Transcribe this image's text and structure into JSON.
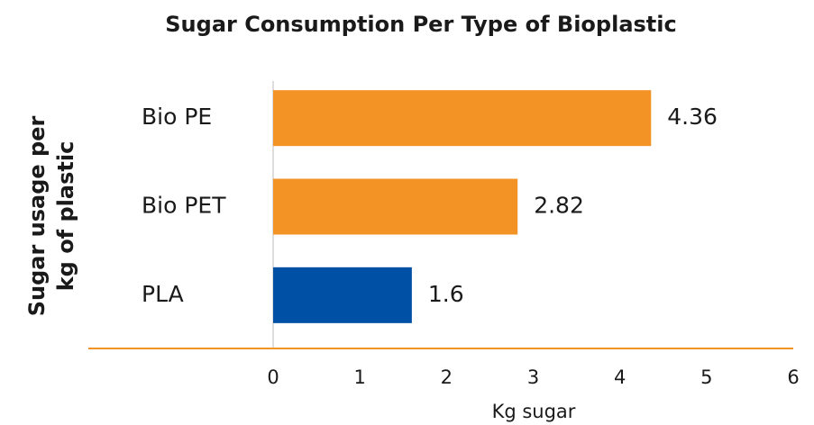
{
  "chart_data": {
    "type": "barh",
    "title": "Sugar Consumption Per Type of Bioplastic",
    "categories": [
      "Bio PE",
      "Bio PET",
      "PLA"
    ],
    "values": [
      4.36,
      2.82,
      1.6
    ],
    "colors": [
      "#f39325",
      "#f39325",
      "#0050a5"
    ],
    "xlabel": "Kg sugar",
    "ylabel": [
      "Sugar usage per",
      "kg of plastic"
    ],
    "xlim": [
      0,
      6
    ],
    "xticks": [
      0,
      1,
      2,
      3,
      4,
      5,
      6
    ],
    "grid": false
  }
}
